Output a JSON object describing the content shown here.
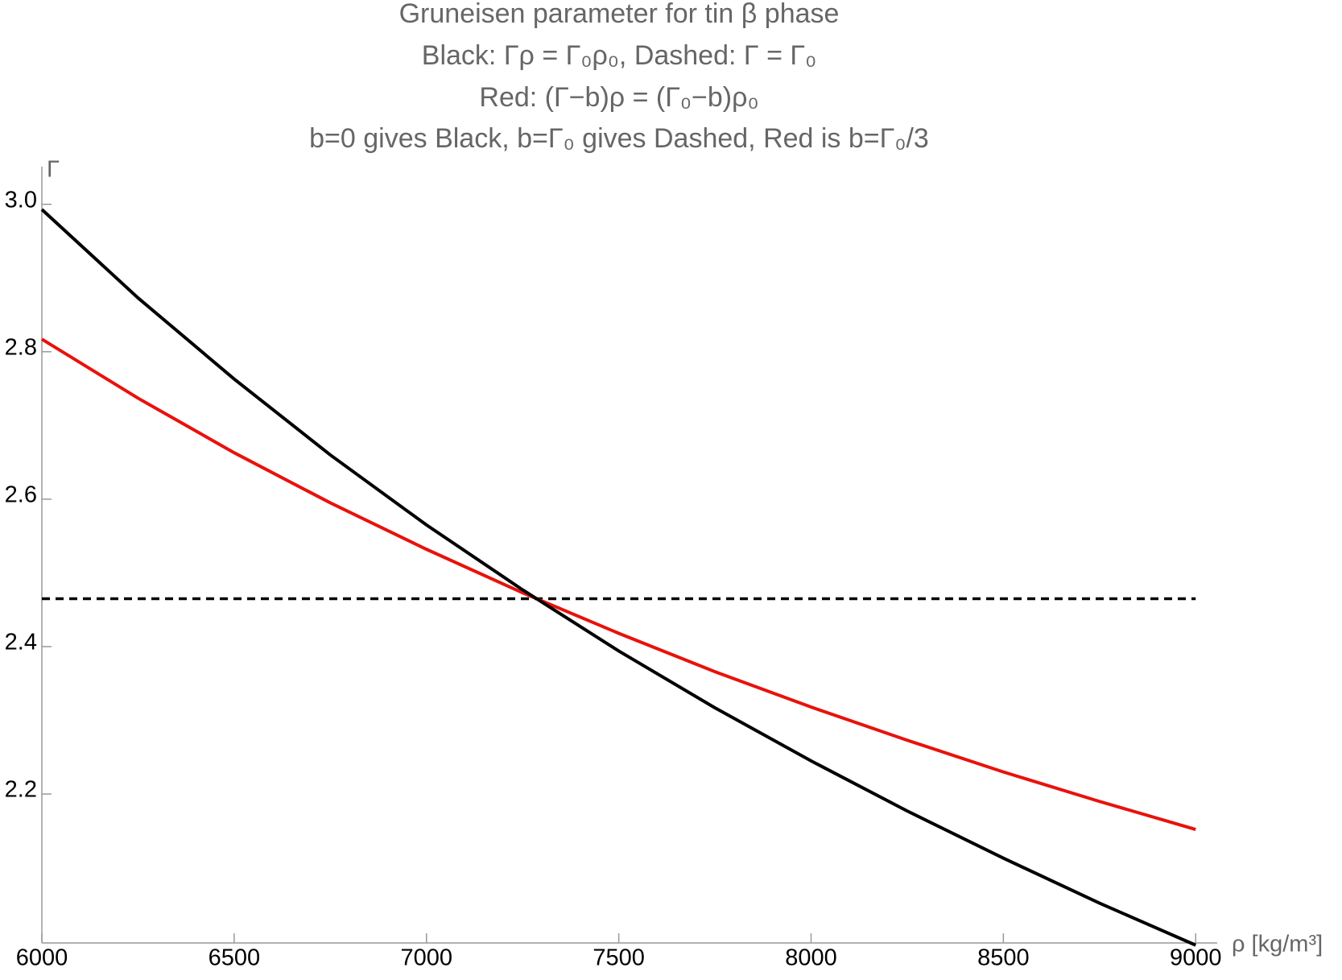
{
  "chart_data": {
    "type": "line",
    "title": "Gruneisen parameter for tin β phase",
    "subtitle": [
      "Black: Γρ = Γ₀ρ₀, Dashed: Γ = Γ₀",
      "Red:  (Γ−b)ρ = (Γ₀−b)ρ₀",
      "b=0 gives Black, b=Γ₀ gives Dashed, Red is b=Γ₀/3"
    ],
    "x_label": "ρ [kg/m³]",
    "y_label": "Γ",
    "x": [
      6000,
      6250,
      6500,
      6750,
      7000,
      7250,
      7500,
      7750,
      8000,
      8250,
      8500,
      8750,
      9000
    ],
    "series": [
      {
        "name": "Black",
        "color": "#000000",
        "dashed": false,
        "values": [
          2.993,
          2.873,
          2.763,
          2.66,
          2.565,
          2.477,
          2.394,
          2.317,
          2.245,
          2.177,
          2.113,
          2.052,
          1.995
        ]
      },
      {
        "name": "Red",
        "color": "#e8120c",
        "dashed": false,
        "values": [
          2.817,
          2.737,
          2.663,
          2.595,
          2.532,
          2.473,
          2.418,
          2.366,
          2.318,
          2.273,
          2.23,
          2.19,
          2.152
        ]
      },
      {
        "name": "Dashed",
        "color": "#000000",
        "dashed": true,
        "values": [
          2.465,
          2.465,
          2.465,
          2.465,
          2.465,
          2.465,
          2.465,
          2.465,
          2.465,
          2.465,
          2.465,
          2.465,
          2.465
        ]
      }
    ],
    "xlim": [
      6000,
      9056
    ],
    "ylim": [
      1.998,
      3.051
    ],
    "xticks": [
      6000,
      6500,
      7000,
      7500,
      8000,
      8500,
      9000
    ],
    "yticks": [
      2.2,
      2.4,
      2.6,
      2.8,
      {
        "value": 3,
        "label": "3.0"
      }
    ]
  }
}
